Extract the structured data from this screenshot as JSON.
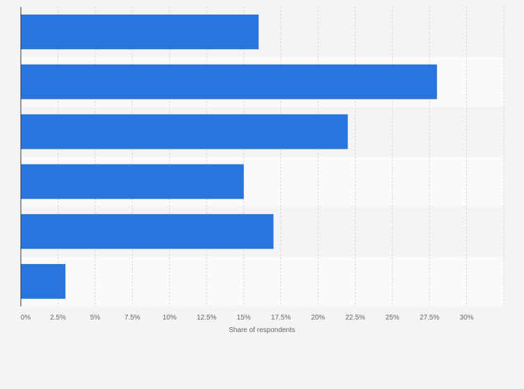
{
  "colors": {
    "page_background": "#f4f4f4",
    "band_even": "#f4f4f4",
    "band_odd": "#fafafa",
    "bar": "#2876dd",
    "gridline": "#d9d9d9",
    "axis_line": "#333333",
    "tick_text": "#666666"
  },
  "chart_data": {
    "type": "bar",
    "orientation": "horizontal",
    "title": "",
    "xlabel": "Share of respondents",
    "ylabel": "",
    "categories": [
      "",
      "",
      "",
      "",
      "",
      ""
    ],
    "values": [
      16,
      28,
      22,
      15,
      17,
      3
    ],
    "xlim": [
      0,
      32.5
    ],
    "x_ticks": [
      0,
      2.5,
      5,
      7.5,
      10,
      12.5,
      15,
      17.5,
      20,
      22.5,
      25,
      27.5,
      30
    ],
    "x_tick_labels": [
      "0%",
      "2.5%",
      "5%",
      "7.5%",
      "10%",
      "12.5%",
      "15%",
      "17.5%",
      "20%",
      "22.5%",
      "25%",
      "27.5%",
      "30%"
    ],
    "value_unit": "%",
    "grid": true,
    "gridline_style": "dashed",
    "alternating_row_bands": true,
    "legend": "none"
  }
}
